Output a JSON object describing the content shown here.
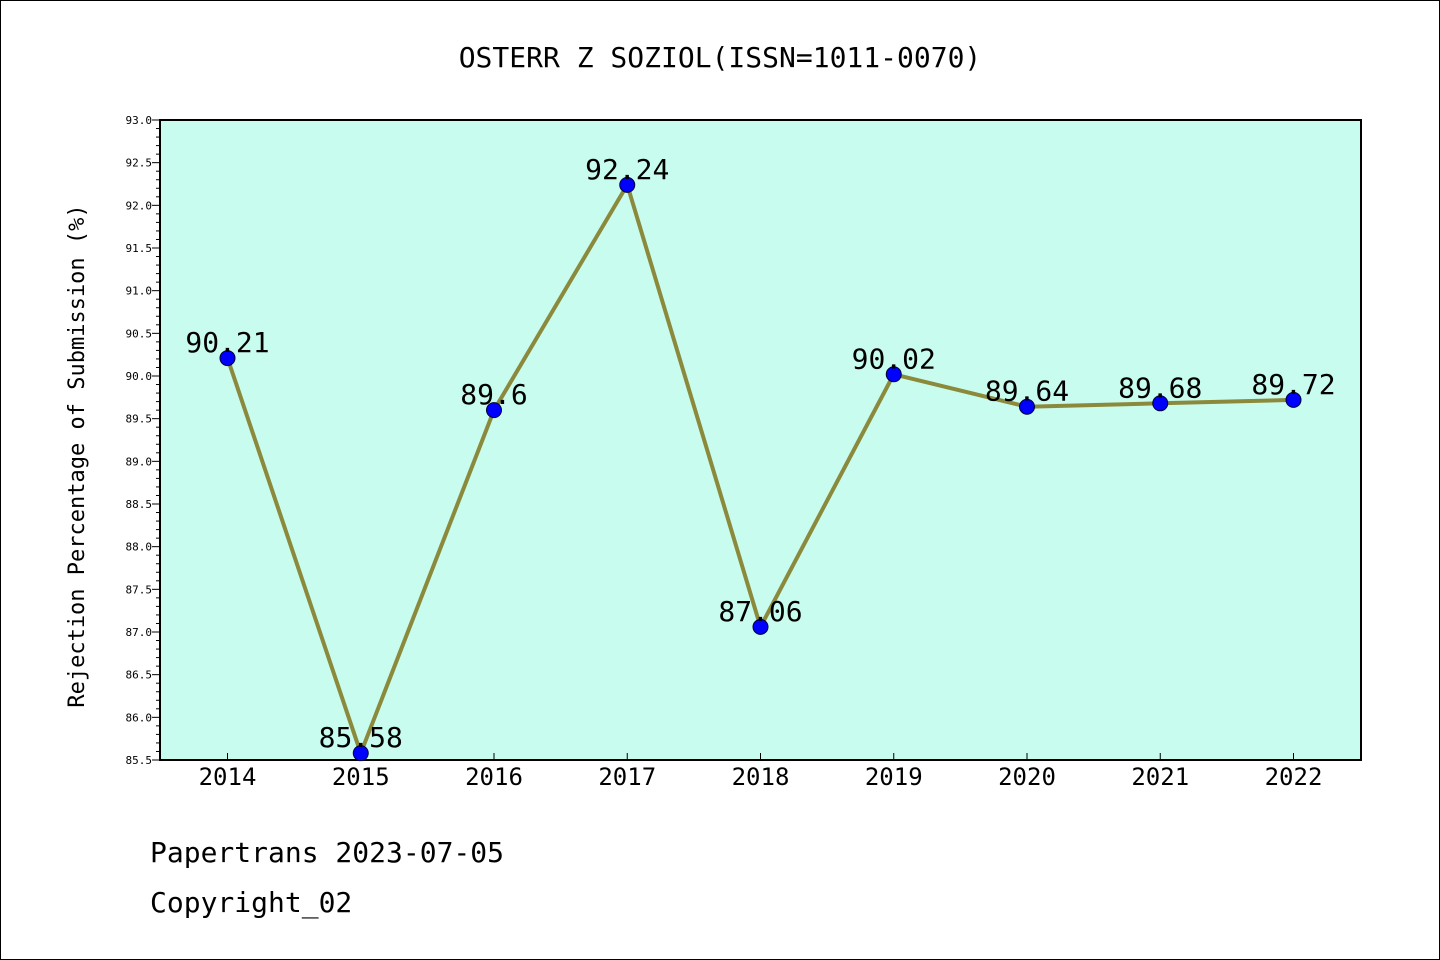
{
  "chart_data": {
    "type": "line",
    "title": "OSTERR Z SOZIOL(ISSN=1011-0070)",
    "xlabel": "",
    "ylabel": "Rejection Percentage of Submission (%)",
    "categories": [
      "2014",
      "2015",
      "2016",
      "2017",
      "2018",
      "2019",
      "2020",
      "2021",
      "2022"
    ],
    "series": [
      {
        "values": [
          90.21,
          85.58,
          89.6,
          92.24,
          87.06,
          90.02,
          89.64,
          89.68,
          89.72
        ],
        "labels": [
          "90.21",
          "85.58",
          "89.6",
          "92.24",
          "87.06",
          "90.02",
          "89.64",
          "89.68",
          "89.72"
        ]
      }
    ],
    "ylim": [
      85.5,
      93.0
    ],
    "yticks": [
      "85.5",
      "86.0",
      "86.5",
      "87.0",
      "87.5",
      "88.0",
      "88.5",
      "89.0",
      "89.5",
      "90.0",
      "90.5",
      "91.0",
      "91.5",
      "92.0",
      "92.5",
      "93.0"
    ],
    "grid": false,
    "colors": {
      "plot_background": "#c8fcee",
      "line": "#8b8a3c",
      "marker": "#0000ff"
    }
  },
  "footer": {
    "line1": "Papertrans 2023-07-05",
    "line2": "Copyright_02"
  }
}
